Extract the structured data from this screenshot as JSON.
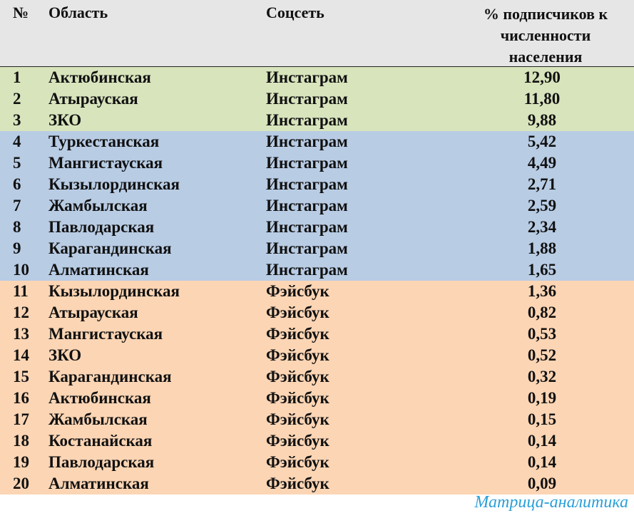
{
  "header": {
    "num": "№",
    "region": "Область",
    "network": "Соцсеть",
    "percent_line1": "% подписчиков к",
    "percent_line2": "численности",
    "percent_line3": "населения"
  },
  "colors": {
    "header_bg": "#e6e6e6",
    "group_green": "#d8e4bc",
    "group_blue": "#b8cce4",
    "group_orange": "#fcd5b4",
    "watermark": "#2aa0d8"
  },
  "rows": [
    {
      "num": "1",
      "region": "Актюбинская",
      "network": "Инстаграм",
      "value": "12,90",
      "group": "green"
    },
    {
      "num": "2",
      "region": "Атырауская",
      "network": "Инстаграм",
      "value": "11,80",
      "group": "green"
    },
    {
      "num": "3",
      "region": "ЗКО",
      "network": "Инстаграм",
      "value": "9,88",
      "group": "green"
    },
    {
      "num": "4",
      "region": "Туркестанская",
      "network": "Инстаграм",
      "value": "5,42",
      "group": "blue"
    },
    {
      "num": "5",
      "region": "Мангистауская",
      "network": "Инстаграм",
      "value": "4,49",
      "group": "blue"
    },
    {
      "num": "6",
      "region": "Кызылординская",
      "network": "Инстаграм",
      "value": "2,71",
      "group": "blue"
    },
    {
      "num": "7",
      "region": "Жамбылская",
      "network": "Инстаграм",
      "value": "2,59",
      "group": "blue"
    },
    {
      "num": "8",
      "region": "Павлодарская",
      "network": "Инстаграм",
      "value": "2,34",
      "group": "blue"
    },
    {
      "num": "9",
      "region": "Карагандинская",
      "network": "Инстаграм",
      "value": "1,88",
      "group": "blue"
    },
    {
      "num": "10",
      "region": "Алматинская",
      "network": "Инстаграм",
      "value": "1,65",
      "group": "blue"
    },
    {
      "num": "11",
      "region": "Кызылординская",
      "network": "Фэйсбук",
      "value": "1,36",
      "group": "orange"
    },
    {
      "num": "12",
      "region": "Атырауская",
      "network": "Фэйсбук",
      "value": "0,82",
      "group": "orange"
    },
    {
      "num": "13",
      "region": "Мангистауская",
      "network": "Фэйсбук",
      "value": "0,53",
      "group": "orange"
    },
    {
      "num": "14",
      "region": "ЗКО",
      "network": "Фэйсбук",
      "value": "0,52",
      "group": "orange"
    },
    {
      "num": "15",
      "region": "Карагандинская",
      "network": "Фэйсбук",
      "value": "0,32",
      "group": "orange"
    },
    {
      "num": "16",
      "region": "Актюбинская",
      "network": "Фэйсбук",
      "value": "0,19",
      "group": "orange"
    },
    {
      "num": "17",
      "region": "Жамбылская",
      "network": "Фэйсбук",
      "value": "0,15",
      "group": "orange"
    },
    {
      "num": "18",
      "region": "Костанайская",
      "network": "Фэйсбук",
      "value": "0,14",
      "group": "orange"
    },
    {
      "num": "19",
      "region": "Павлодарская",
      "network": "Фэйсбук",
      "value": "0,14",
      "group": "orange"
    },
    {
      "num": "20",
      "region": "Алматинская",
      "network": "Фэйсбук",
      "value": "0,09",
      "group": "orange"
    }
  ],
  "watermark": "Матрица-аналитика"
}
